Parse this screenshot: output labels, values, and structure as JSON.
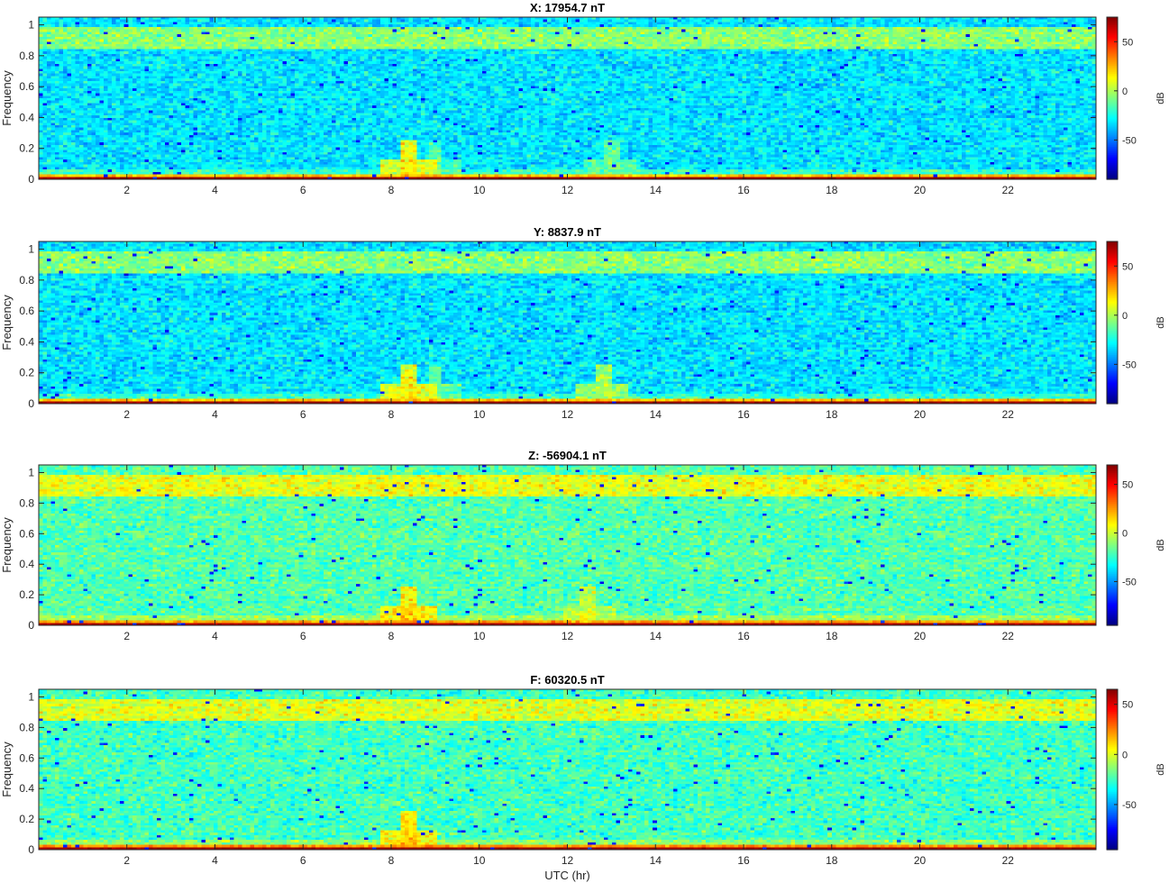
{
  "chart_data": [
    {
      "type": "heatmap",
      "title": "X: 17954.7 nT",
      "ylabel": "Frequency",
      "xlabel": "",
      "xlim": [
        0,
        24
      ],
      "ylim": [
        0,
        1.05
      ],
      "x_ticks": [
        2,
        4,
        6,
        8,
        10,
        12,
        14,
        16,
        18,
        20,
        22
      ],
      "y_ticks": [
        0,
        0.2,
        0.4,
        0.6,
        0.8,
        1
      ],
      "colorbar": {
        "label": "dB",
        "range": [
          -90,
          75
        ],
        "ticks": [
          -50,
          0,
          50
        ]
      },
      "colormap": "jet",
      "background_level_db": -32,
      "upper_band": {
        "freq_range": [
          0.85,
          0.99
        ],
        "level_db": -6
      },
      "low_freq_band": {
        "freq_range": [
          0,
          0.015
        ],
        "level_db": 70
      },
      "events": [
        {
          "utc_hr": 8.4,
          "level_db": 18
        },
        {
          "utc_hr": 9.0,
          "level_db": -8
        },
        {
          "utc_hr": 13.0,
          "level_db": -6
        }
      ]
    },
    {
      "type": "heatmap",
      "title": "Y: 8837.9 nT",
      "ylabel": "Frequency",
      "xlabel": "",
      "xlim": [
        0,
        24
      ],
      "ylim": [
        0,
        1.05
      ],
      "x_ticks": [
        2,
        4,
        6,
        8,
        10,
        12,
        14,
        16,
        18,
        20,
        22
      ],
      "y_ticks": [
        0,
        0.2,
        0.4,
        0.6,
        0.8,
        1
      ],
      "colorbar": {
        "label": "dB",
        "range": [
          -90,
          75
        ],
        "ticks": [
          -50,
          0,
          50
        ]
      },
      "colormap": "jet",
      "background_level_db": -32,
      "upper_band": {
        "freq_range": [
          0.85,
          0.99
        ],
        "level_db": -6
      },
      "low_freq_band": {
        "freq_range": [
          0,
          0.015
        ],
        "level_db": 70
      },
      "events": [
        {
          "utc_hr": 8.4,
          "level_db": 18
        },
        {
          "utc_hr": 9.0,
          "level_db": -6
        },
        {
          "utc_hr": 12.8,
          "level_db": 5
        }
      ]
    },
    {
      "type": "heatmap",
      "title": "Z: -56904.1 nT",
      "ylabel": "Frequency",
      "xlabel": "",
      "xlim": [
        0,
        24
      ],
      "ylim": [
        0,
        1.05
      ],
      "x_ticks": [
        2,
        4,
        6,
        8,
        10,
        12,
        14,
        16,
        18,
        20,
        22
      ],
      "y_ticks": [
        0,
        0.2,
        0.4,
        0.6,
        0.8,
        1
      ],
      "colorbar": {
        "label": "dB",
        "range": [
          -95,
          70
        ],
        "ticks": [
          -50,
          0,
          50
        ]
      },
      "colormap": "jet",
      "background_level_db": -20,
      "upper_band": {
        "freq_range": [
          0.85,
          0.99
        ],
        "level_db": 5
      },
      "low_freq_band": {
        "freq_range": [
          0,
          0.015
        ],
        "level_db": 62
      },
      "events": [
        {
          "utc_hr": 8.4,
          "level_db": 18
        },
        {
          "utc_hr": 12.5,
          "level_db": 5
        }
      ]
    },
    {
      "type": "heatmap",
      "title": "F: 60320.5 nT",
      "ylabel": "Frequency",
      "xlabel": "UTC (hr)",
      "xlim": [
        0,
        24
      ],
      "ylim": [
        0,
        1.05
      ],
      "x_ticks": [
        2,
        4,
        6,
        8,
        10,
        12,
        14,
        16,
        18,
        20,
        22
      ],
      "y_ticks": [
        0,
        0.2,
        0.4,
        0.6,
        0.8,
        1
      ],
      "colorbar": {
        "label": "dB",
        "range": [
          -95,
          65
        ],
        "ticks": [
          -50,
          0,
          50
        ]
      },
      "colormap": "jet",
      "background_level_db": -25,
      "upper_band": {
        "freq_range": [
          0.85,
          0.99
        ],
        "level_db": 0
      },
      "low_freq_band": {
        "freq_range": [
          0,
          0.015
        ],
        "level_db": 60
      },
      "events": [
        {
          "utc_hr": 8.4,
          "level_db": 15
        }
      ]
    }
  ]
}
